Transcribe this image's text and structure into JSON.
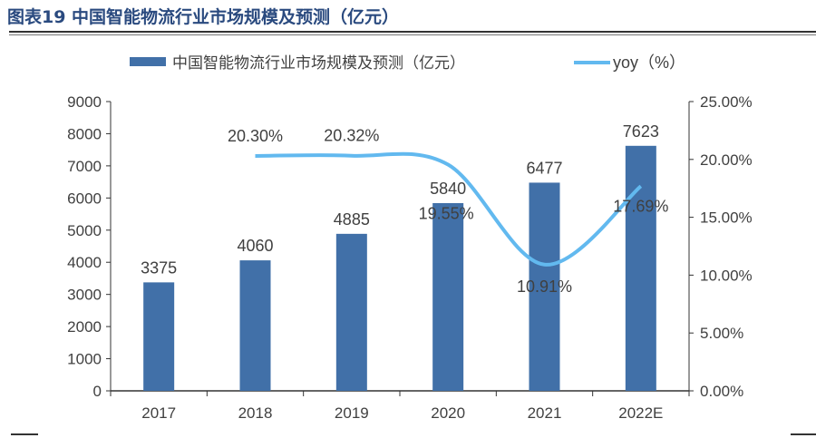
{
  "title": "图表19 中国智能物流行业市场规模及预测（亿元）",
  "chart_data": {
    "type": "bar+line",
    "categories": [
      "2017",
      "2018",
      "2019",
      "2020",
      "2021",
      "2022E"
    ],
    "series": [
      {
        "name": "中国智能物流行业市场规模及预测（亿元）",
        "type": "bar",
        "axis": "left",
        "color": "#4170a8",
        "values": [
          3375,
          4060,
          4885,
          5840,
          6477,
          7623
        ],
        "labels": [
          "3375",
          "4060",
          "4885",
          "5840",
          "6477",
          "7623"
        ]
      },
      {
        "name": "yoy（%）",
        "type": "line",
        "axis": "right",
        "color": "#62b9ef",
        "values": [
          null,
          20.3,
          20.32,
          19.55,
          10.91,
          17.69
        ],
        "labels": [
          "",
          "20.30%",
          "20.32%",
          "19.55%",
          "10.91%",
          "17.69%"
        ]
      }
    ],
    "left_axis": {
      "range": [
        0,
        9000
      ],
      "ticks": [
        "0",
        "1000",
        "2000",
        "3000",
        "4000",
        "5000",
        "6000",
        "7000",
        "8000",
        "9000"
      ]
    },
    "right_axis": {
      "range": [
        0,
        25
      ],
      "ticks": [
        "0.00%",
        "5.00%",
        "10.00%",
        "15.00%",
        "20.00%",
        "25.00%"
      ]
    },
    "grid": false,
    "legend": "top"
  }
}
